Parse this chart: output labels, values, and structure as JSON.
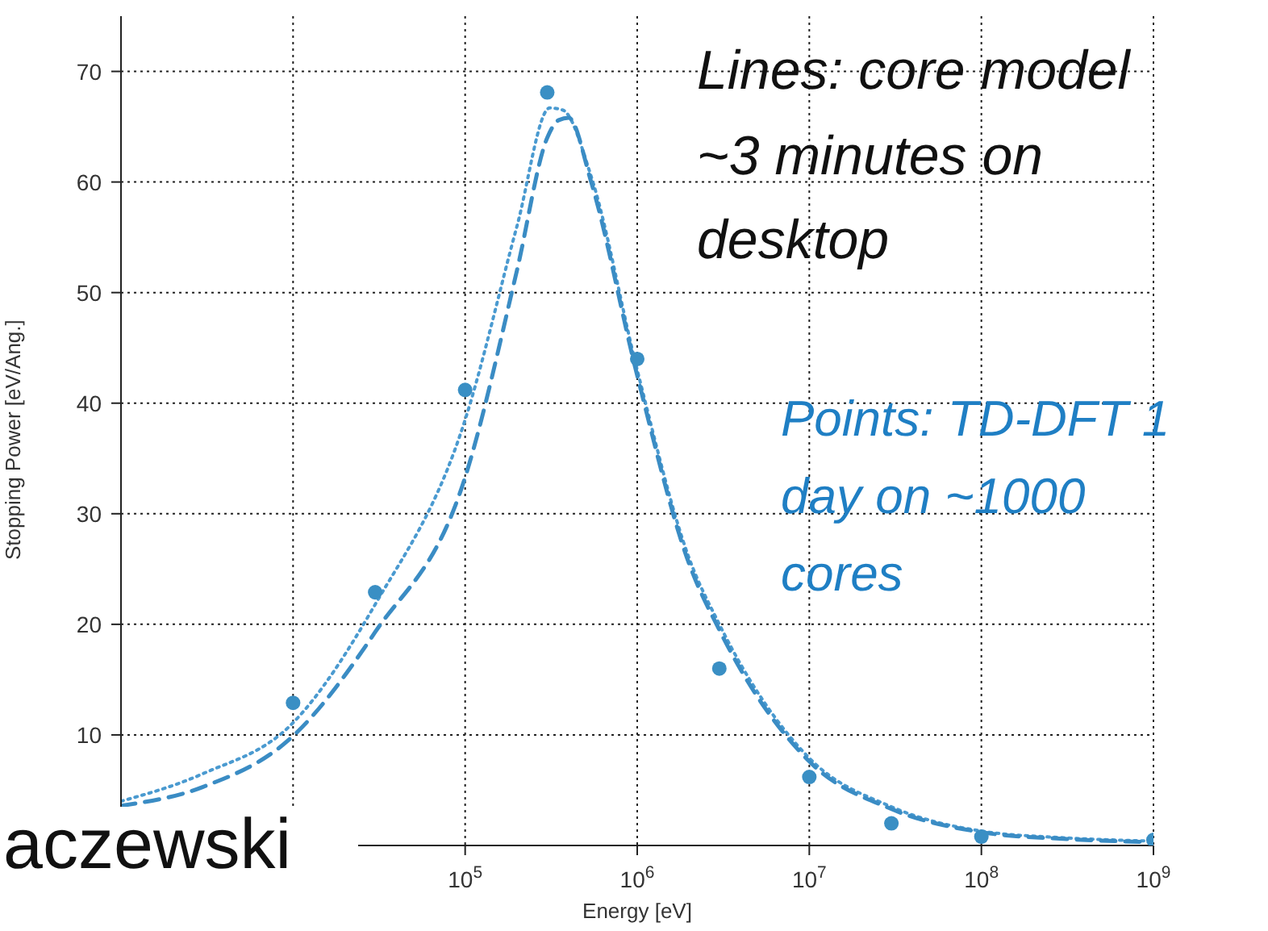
{
  "chart_data": {
    "type": "line",
    "xlabel": "Energy [eV]",
    "ylabel": "Stopping Power [eV/Ang.]",
    "log": "x",
    "grid": true,
    "xlim": [
      1000,
      1000000000
    ],
    "ylim": [
      0,
      75
    ],
    "xticks": [
      {
        "value": 10000,
        "label": null
      },
      {
        "value": 100000,
        "label": "10$^{5}$"
      },
      {
        "value": 1000000,
        "label": "10$^{6}$"
      },
      {
        "value": 10000000,
        "label": "10$^{7}$"
      },
      {
        "value": 100000000,
        "label": "10$^{8}$"
      },
      {
        "value": 1000000000,
        "label": "10$^{9}$"
      }
    ],
    "yticks": [
      10,
      20,
      30,
      40,
      50,
      60,
      70
    ],
    "series": [
      {
        "line_style": "dotted",
        "marker": "none",
        "color": "#4a9ad0",
        "x": [
          1000,
          3000,
          10000,
          30000,
          100000,
          200000,
          310000,
          370000,
          540000,
          1000000,
          2000000,
          3000000,
          10000000,
          30000000,
          100000000,
          300000000,
          1000000000
        ],
        "values": [
          4.0,
          6.5,
          11.1,
          21.8,
          38.5,
          56,
          66.7,
          66.5,
          60.5,
          43,
          26,
          20,
          7.9,
          3.5,
          1.3,
          0.7,
          0.4
        ]
      },
      {
        "line_style": "dashed",
        "marker": "none",
        "color": "#3a8cc4",
        "x": [
          1000,
          3000,
          10000,
          30000,
          100000,
          200000,
          300000,
          350000,
          400000,
          540000,
          1000000,
          2000000,
          3000000,
          10000000,
          30000000,
          100000000,
          300000000,
          1000000000
        ],
        "values": [
          3.6,
          5.3,
          9.9,
          19.3,
          33.3,
          52,
          64,
          65.6,
          65.8,
          60,
          42.5,
          25.5,
          19.5,
          7.6,
          3.3,
          1.2,
          0.6,
          0.3
        ]
      },
      {
        "type": "scatter",
        "marker": "circle",
        "color": "#3a8fc4",
        "x": [
          10000,
          30000,
          100000,
          300000,
          1000000,
          3000000,
          10000000,
          30000000,
          100000000,
          1000000000
        ],
        "values": [
          12.9,
          22.9,
          41.2,
          68.1,
          44,
          16.0,
          6.2,
          2.0,
          0.8,
          0.5
        ]
      }
    ],
    "annotations": [
      "Lines: core model ~3 minutes on desktop",
      "Points: TD-DFT 1 day on ~1000 cores",
      "aczewski"
    ]
  }
}
